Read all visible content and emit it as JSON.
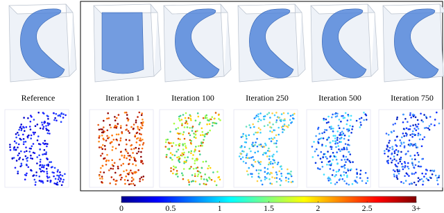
{
  "panels": [
    {
      "label": "Reference"
    },
    {
      "label": "Iteration 1"
    },
    {
      "label": "Iteration 100"
    },
    {
      "label": "Iteration 250"
    },
    {
      "label": "Iteration 500"
    },
    {
      "label": "Iteration 750"
    }
  ],
  "colorbar": {
    "range": [
      0,
      3
    ],
    "ticks": [
      0,
      0.5,
      1,
      1.5,
      2,
      2.5,
      {
        "value": 3,
        "label": "3+"
      }
    ]
  }
}
